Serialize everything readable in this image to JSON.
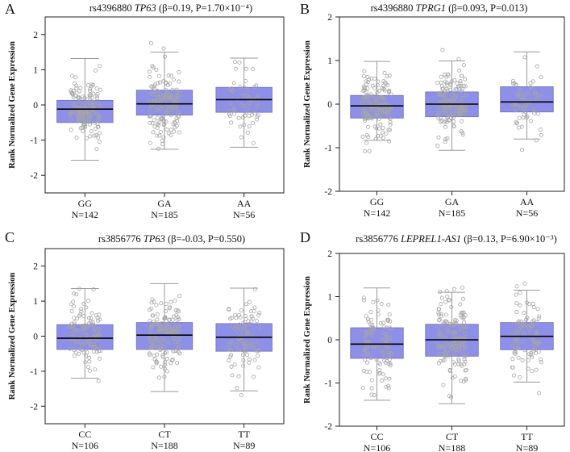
{
  "figure": {
    "description_free": true
  },
  "chart_data": [
    {
      "type": "box",
      "panel": "A",
      "title_prefix": "rs4396880",
      "gene": "TP63",
      "stats": "(β=0.19, P=1.70×10⁻⁴)",
      "ylabel": "Rank Normalized Gene Expression",
      "ylim": [
        -2.5,
        2.5
      ],
      "yticks": [
        "2",
        "1",
        "0",
        "-1",
        "-2"
      ],
      "ytick_values": [
        2,
        1,
        0,
        -1,
        -2
      ],
      "categories": [
        "GG",
        "GA",
        "AA"
      ],
      "counts": [
        "N=142",
        "N=185",
        "N=56"
      ],
      "n": [
        142,
        185,
        56
      ],
      "boxes": [
        {
          "q1": -0.5,
          "median": -0.12,
          "q3": 0.13,
          "whisker_low": -1.57,
          "whisker_high": 1.32
        },
        {
          "q1": -0.29,
          "median": 0.03,
          "q3": 0.42,
          "whisker_low": -1.26,
          "whisker_high": 1.5
        },
        {
          "q1": -0.21,
          "median": 0.15,
          "q3": 0.5,
          "whisker_low": -1.2,
          "whisker_high": 1.33
        }
      ]
    },
    {
      "type": "box",
      "panel": "B",
      "title_prefix": "rs4396880",
      "gene": "TPRG1",
      "stats": "(β=0.093, P=0.013)",
      "ylabel": "Rank Normalized Gene Expression",
      "ylim": [
        -2,
        2
      ],
      "yticks": [
        "2",
        "1",
        "0",
        "-1",
        "-2"
      ],
      "ytick_values": [
        2,
        1,
        0,
        -1,
        -2
      ],
      "categories": [
        "GG",
        "GA",
        "AA"
      ],
      "counts": [
        "N=142",
        "N=185",
        "N=56"
      ],
      "n": [
        142,
        185,
        56
      ],
      "boxes": [
        {
          "q1": -0.32,
          "median": -0.04,
          "q3": 0.2,
          "whisker_low": -0.83,
          "whisker_high": 0.98
        },
        {
          "q1": -0.29,
          "median": 0.0,
          "q3": 0.28,
          "whisker_low": -1.06,
          "whisker_high": 0.99
        },
        {
          "q1": -0.18,
          "median": 0.05,
          "q3": 0.4,
          "whisker_low": -0.8,
          "whisker_high": 1.2
        }
      ]
    },
    {
      "type": "box",
      "panel": "C",
      "title_prefix": "rs3856776",
      "gene": "TP63",
      "stats": "(β=-0.03, P=0.550)",
      "ylabel": "Rank Normalized Gene Expression",
      "ylim": [
        -2.5,
        2.5
      ],
      "yticks": [
        "2",
        "1",
        "0",
        "-1",
        "-2"
      ],
      "ytick_values": [
        2,
        1,
        0,
        -1,
        -2
      ],
      "categories": [
        "CC",
        "CT",
        "TT"
      ],
      "counts": [
        "N=106",
        "N=188",
        "N=89"
      ],
      "n": [
        106,
        188,
        89
      ],
      "boxes": [
        {
          "q1": -0.38,
          "median": -0.06,
          "q3": 0.33,
          "whisker_low": -1.2,
          "whisker_high": 1.36
        },
        {
          "q1": -0.38,
          "median": 0.03,
          "q3": 0.39,
          "whisker_low": -1.58,
          "whisker_high": 1.5
        },
        {
          "q1": -0.43,
          "median": -0.03,
          "q3": 0.36,
          "whisker_low": -1.56,
          "whisker_high": 1.37
        }
      ]
    },
    {
      "type": "box",
      "panel": "D",
      "title_prefix": "rs3856776",
      "gene": "LEPREL1-AS1",
      "stats": "(β=0.13, P=6.90×10⁻³)",
      "ylabel": "Rank Normalized Gene Expression",
      "ylim": [
        -2,
        2
      ],
      "yticks": [
        "2",
        "1",
        "0",
        "-1",
        "-2"
      ],
      "ytick_values": [
        2,
        1,
        0,
        -1,
        -2
      ],
      "categories": [
        "CC",
        "CT",
        "TT"
      ],
      "counts": [
        "N=106",
        "N=188",
        "N=89"
      ],
      "n": [
        106,
        188,
        89
      ],
      "boxes": [
        {
          "q1": -0.43,
          "median": -0.1,
          "q3": 0.28,
          "whisker_low": -1.4,
          "whisker_high": 1.2
        },
        {
          "q1": -0.38,
          "median": 0.0,
          "q3": 0.36,
          "whisker_low": -1.48,
          "whisker_high": 1.1
        },
        {
          "q1": -0.23,
          "median": 0.08,
          "q3": 0.4,
          "whisker_low": -0.98,
          "whisker_high": 1.15
        }
      ]
    }
  ],
  "colors": {
    "box_fill": "#8e8fe6",
    "box_stroke": "#6f70c8",
    "median": "#000000",
    "whisker": "#9a9a9a",
    "point": "#a6a6a6"
  }
}
